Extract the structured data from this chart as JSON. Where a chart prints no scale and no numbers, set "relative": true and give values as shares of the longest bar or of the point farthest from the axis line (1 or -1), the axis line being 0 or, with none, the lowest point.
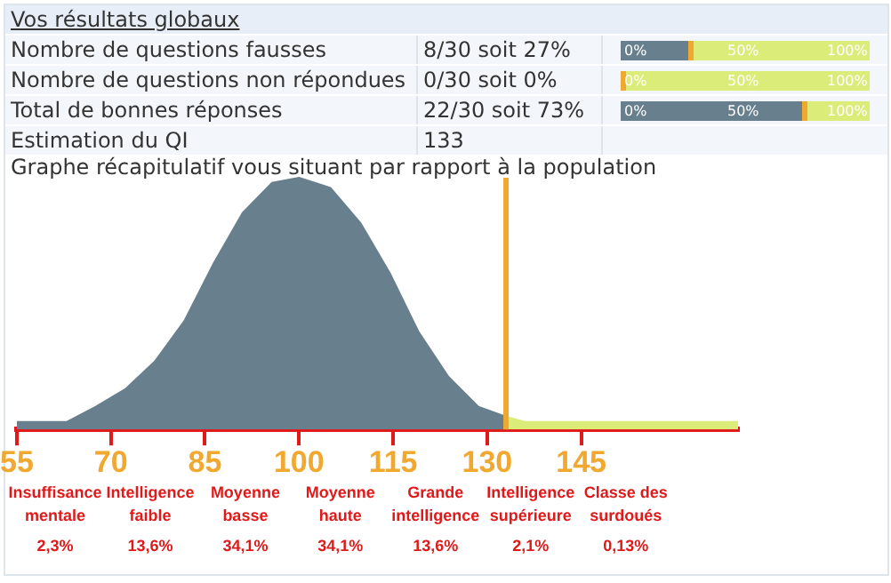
{
  "chart_data": {
    "type": "area",
    "title": "Vos résultats globaux",
    "subtitle": "Graphe récapitulatif vous situant par rapport à la population",
    "annotations": [
      "Nombre de questions fausses",
      "8/30 soit 27%",
      "Nombre de questions non répondues",
      "0/30 soit 0%",
      "Total de bonnes réponses",
      "22/30 soit 73%",
      "Estimation du QI",
      "133",
      "0%",
      "50%",
      "100%",
      "Insuffisance mentale",
      "2,3%",
      "Intelligence faible",
      "13,6%",
      "Moyenne basse",
      "34,1%",
      "Moyenne haute",
      "34,1%",
      "Grande intelligence",
      "13,6%",
      "Intelligence supérieure",
      "2,1%",
      "Classe des surdoués",
      "0,13%"
    ],
    "relative": true,
    "series": [
      {
        "color": "#687f8e",
        "x": [
          55,
          60,
          63,
          67.6,
          72.3,
          77,
          81.7,
          86.4,
          91,
          95.7,
          100,
          105,
          109.8,
          114.5,
          119,
          123.8,
          128.6,
          133
        ],
        "values": [
          0.03,
          0.03,
          0.03,
          0.09,
          0.16,
          0.27,
          0.43,
          0.66,
          0.86,
          0.98,
          1,
          0.96,
          0.82,
          0.62,
          0.39,
          0.21,
          0.09,
          0.05
        ]
      },
      {
        "color": "#dcec78",
        "x": [
          133,
          136,
          170
        ],
        "values": [
          0.05,
          0.03,
          0.03
        ]
      }
    ],
    "xlim": [
      55,
      170
    ],
    "xticks": [
      55,
      70,
      85,
      100,
      115,
      130,
      145
    ],
    "ref_lines": [
      {
        "axis": "x",
        "value": 133,
        "color": "#f0a830"
      }
    ],
    "grid": false,
    "legend": false,
    "marker": "none"
  }
}
